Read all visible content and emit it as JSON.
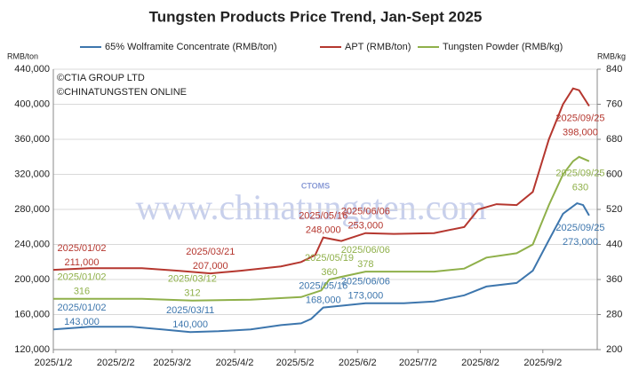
{
  "chart_data": {
    "type": "line",
    "title": "Tungsten Products Price Trend, Jan-Sept 2025",
    "y_label": "RMB/ton",
    "y2_label": "RMB/kg",
    "copyright": [
      "©CTIA GROUP LTD",
      "©CHINATUNGSTEN ONLINE"
    ],
    "watermark": "www.chinatungsten.com",
    "logo": "CTOMS",
    "grid": true,
    "xlim": [
      "2025/1/2",
      "2025/9/29"
    ],
    "xticks": [
      "2025/1/2",
      "2025/2/2",
      "2025/3/2",
      "2025/4/2",
      "2025/5/2",
      "2025/6/2",
      "2025/7/2",
      "2025/8/2",
      "2025/9/2"
    ],
    "ylim": [
      120000,
      440000
    ],
    "yticks": [
      {
        "value": 120000,
        "label": "120,000"
      },
      {
        "value": 160000,
        "label": "160,000"
      },
      {
        "value": 200000,
        "label": "200,000"
      },
      {
        "value": 240000,
        "label": "240,000"
      },
      {
        "value": 280000,
        "label": "280,000"
      },
      {
        "value": 320000,
        "label": "320,000"
      },
      {
        "value": 360000,
        "label": "360,000"
      },
      {
        "value": 400000,
        "label": "400,000"
      },
      {
        "value": 440000,
        "label": "440,000"
      }
    ],
    "y2lim": [
      200,
      840
    ],
    "y2ticks": [
      200,
      280,
      360,
      440,
      520,
      600,
      680,
      760,
      840
    ],
    "series": [
      {
        "name": "65% Wolframite Concentrate (RMB/ton)",
        "color": "#3d76ad",
        "x": [
          "2025/1/2",
          "2025/1/20",
          "2025/2/10",
          "2025/2/25",
          "2025/3/11",
          "2025/3/25",
          "2025/4/10",
          "2025/4/25",
          "2025/5/5",
          "2025/5/10",
          "2025/5/16",
          "2025/6/6",
          "2025/6/25",
          "2025/7/10",
          "2025/7/25",
          "2025/8/5",
          "2025/8/20",
          "2025/8/28",
          "2025/9/5",
          "2025/9/12",
          "2025/9/19",
          "2025/9/22",
          "2025/9/25"
        ],
        "values": [
          143000,
          146000,
          146000,
          143000,
          140000,
          141000,
          143000,
          148000,
          150000,
          155000,
          168000,
          173000,
          173000,
          175000,
          182000,
          192000,
          196000,
          210000,
          245000,
          275000,
          287000,
          285000,
          273000
        ],
        "annotations": [
          {
            "x": "2025/1/2",
            "label": "2025/01/02",
            "value": 143000,
            "value_label": "143,000"
          },
          {
            "x": "2025/3/11",
            "label": "2025/03/11",
            "value": 140000,
            "value_label": "140,000"
          },
          {
            "x": "2025/5/16",
            "label": "2025/05/16",
            "value": 168000,
            "value_label": "168,000"
          },
          {
            "x": "2025/6/6",
            "label": "2025/06/06",
            "value": 173000,
            "value_label": "173,000"
          },
          {
            "x": "2025/9/25",
            "label": "2025/09/25",
            "value": 273000,
            "value_label": "273,000"
          }
        ]
      },
      {
        "name": "APT (RMB/ton)",
        "color": "#b5372f",
        "x": [
          "2025/1/2",
          "2025/1/20",
          "2025/2/15",
          "2025/3/5",
          "2025/3/21",
          "2025/4/5",
          "2025/4/25",
          "2025/5/5",
          "2025/5/12",
          "2025/5/16",
          "2025/5/25",
          "2025/6/6",
          "2025/6/20",
          "2025/7/10",
          "2025/7/25",
          "2025/8/1",
          "2025/8/10",
          "2025/8/20",
          "2025/8/28",
          "2025/9/5",
          "2025/9/12",
          "2025/9/17",
          "2025/9/20",
          "2025/9/25"
        ],
        "values": [
          211000,
          213000,
          213000,
          210000,
          207000,
          210000,
          215000,
          220000,
          228000,
          248000,
          244000,
          253000,
          252000,
          253000,
          260000,
          280000,
          286000,
          285000,
          300000,
          360000,
          400000,
          418000,
          416000,
          398000
        ],
        "annotations": [
          {
            "x": "2025/1/2",
            "label": "2025/01/02",
            "value": 211000,
            "value_label": "211,000"
          },
          {
            "x": "2025/3/21",
            "label": "2025/03/21",
            "value": 207000,
            "value_label": "207,000"
          },
          {
            "x": "2025/5/16",
            "label": "2025/05/16",
            "value": 248000,
            "value_label": "248,000"
          },
          {
            "x": "2025/6/6",
            "label": "2025/06/06",
            "value": 253000,
            "value_label": "253,000"
          },
          {
            "x": "2025/9/25",
            "label": "2025/09/25",
            "value": 398000,
            "value_label": "398,000"
          }
        ]
      },
      {
        "name": "Tungsten Powder (RMB/kg)",
        "color": "#8fb04a",
        "axis": "y2",
        "x": [
          "2025/1/2",
          "2025/2/15",
          "2025/3/12",
          "2025/4/10",
          "2025/5/5",
          "2025/5/15",
          "2025/5/19",
          "2025/6/6",
          "2025/7/10",
          "2025/7/25",
          "2025/8/5",
          "2025/8/20",
          "2025/8/28",
          "2025/9/5",
          "2025/9/12",
          "2025/9/17",
          "2025/9/20",
          "2025/9/25"
        ],
        "values": [
          316,
          316,
          312,
          314,
          320,
          335,
          360,
          378,
          378,
          385,
          410,
          420,
          440,
          530,
          600,
          630,
          640,
          630
        ],
        "annotations": [
          {
            "x": "2025/1/2",
            "label": "2025/01/02",
            "value": 316
          },
          {
            "x": "2025/3/12",
            "label": "2025/03/12",
            "value": 312
          },
          {
            "x": "2025/5/19",
            "label": "2025/05/19",
            "value": 360
          },
          {
            "x": "2025/6/6",
            "label": "2025/06/06",
            "value": 378
          },
          {
            "x": "2025/9/25",
            "label": "2025/09/25",
            "value": 630
          }
        ]
      }
    ]
  }
}
